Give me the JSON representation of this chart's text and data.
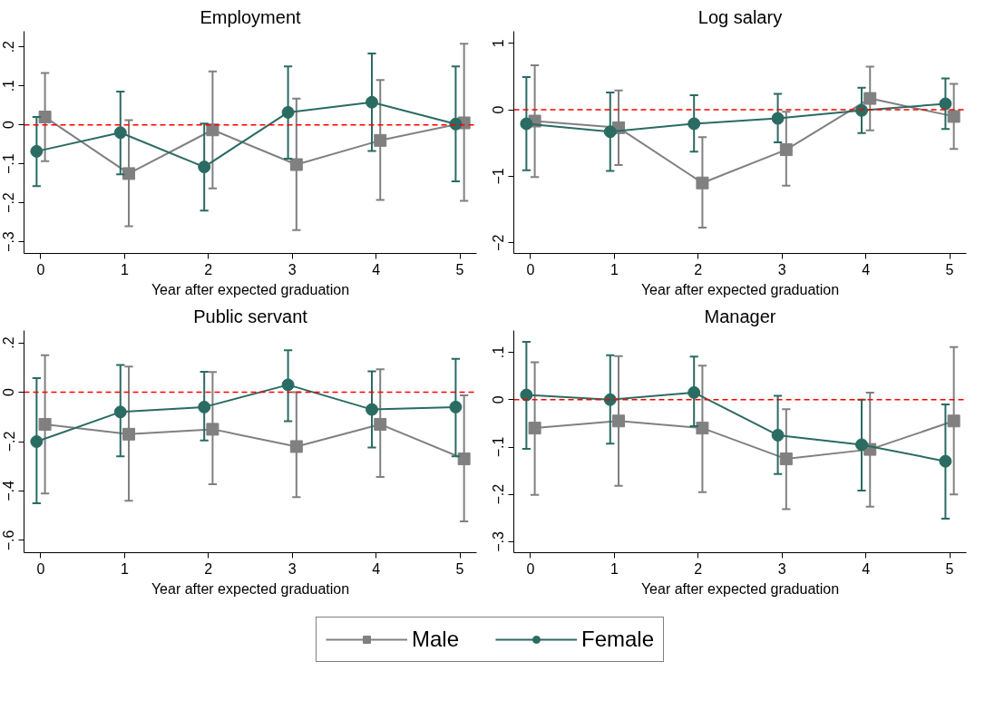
{
  "chart_data": [
    {
      "type": "line",
      "title": "Employment",
      "xlabel": "Year after expected graduation",
      "grid": false,
      "legend": "bottom",
      "xlim": [
        -0.2,
        5.2
      ],
      "xticks": [
        0,
        1,
        2,
        3,
        4,
        5
      ],
      "ylim": [
        -0.33,
        0.24
      ],
      "yticks": [
        {
          "value": -0.3,
          "label": "−.3"
        },
        {
          "value": -0.2,
          "label": "−.2"
        },
        {
          "value": -0.1,
          "label": "−.1"
        },
        0,
        {
          "value": 0.1,
          "label": ".1"
        },
        {
          "value": 0.2,
          "label": ".2"
        }
      ],
      "ref_lines": [
        {
          "axis": "y",
          "value": 0,
          "color": "#ff0000",
          "line_style": "dashed"
        }
      ],
      "series": [
        {
          "name": "Male",
          "color": "#808080",
          "marker": "square",
          "x": [
            0.05,
            1.05,
            2.05,
            3.05,
            4.05,
            5.05
          ],
          "values": [
            0.02,
            -0.125,
            -0.013,
            -0.102,
            -0.04,
            0.005
          ],
          "errors": [
            [
              -0.093,
              0.133
            ],
            [
              -0.26,
              0.012
            ],
            [
              -0.163,
              0.137
            ],
            [
              -0.27,
              0.067
            ],
            [
              -0.193,
              0.115
            ],
            [
              -0.195,
              0.208
            ]
          ]
        },
        {
          "name": "Female",
          "color": "#2a6b62",
          "marker": "circle",
          "x": [
            -0.05,
            0.95,
            1.95,
            2.95,
            3.95,
            4.95
          ],
          "values": [
            -0.068,
            -0.02,
            -0.108,
            0.032,
            0.058,
            0.002
          ],
          "errors": [
            [
              -0.157,
              0.02
            ],
            [
              -0.127,
              0.085
            ],
            [
              -0.22,
              0.003
            ],
            [
              -0.087,
              0.15
            ],
            [
              -0.067,
              0.183
            ],
            [
              -0.145,
              0.15
            ]
          ]
        }
      ]
    },
    {
      "type": "line",
      "title": "Log salary",
      "xlabel": "Year after expected graduation",
      "grid": false,
      "xlim": [
        -0.2,
        5.2
      ],
      "xticks": [
        0,
        1,
        2,
        3,
        4,
        5
      ],
      "ylim": [
        -2.16,
        1.18
      ],
      "yticks": [
        {
          "value": -2,
          "label": "−2"
        },
        {
          "value": -1,
          "label": "−1"
        },
        0,
        1
      ],
      "ref_lines": [
        {
          "axis": "y",
          "value": 0,
          "color": "#ff0000",
          "line_style": "dashed"
        }
      ],
      "series": [
        {
          "color": "#808080",
          "marker": "square",
          "x": [
            0.05,
            1.05,
            2.05,
            3.05,
            4.05,
            5.05
          ],
          "values": [
            -0.17,
            -0.27,
            -1.1,
            -0.6,
            0.17,
            -0.1
          ],
          "errors": [
            [
              -1.01,
              0.67
            ],
            [
              -0.83,
              0.29
            ],
            [
              -1.77,
              -0.41
            ],
            [
              -1.14,
              -0.03
            ],
            [
              -0.31,
              0.65
            ],
            [
              -0.59,
              0.39
            ]
          ]
        },
        {
          "color": "#2a6b62",
          "marker": "circle",
          "x": [
            -0.05,
            0.95,
            1.95,
            2.95,
            3.95,
            4.95
          ],
          "values": [
            -0.21,
            -0.33,
            -0.21,
            -0.13,
            -0.01,
            0.09
          ],
          "errors": [
            [
              -0.91,
              0.49
            ],
            [
              -0.92,
              0.26
            ],
            [
              -0.63,
              0.22
            ],
            [
              -0.49,
              0.24
            ],
            [
              -0.35,
              0.33
            ],
            [
              -0.29,
              0.47
            ]
          ]
        }
      ]
    },
    {
      "type": "line",
      "title": "Public servant",
      "xlabel": "Year after expected graduation",
      "grid": false,
      "xlim": [
        -0.2,
        5.2
      ],
      "xticks": [
        0,
        1,
        2,
        3,
        4,
        5
      ],
      "ylim": [
        -0.65,
        0.25
      ],
      "yticks": [
        {
          "value": -0.6,
          "label": "−.6"
        },
        {
          "value": -0.4,
          "label": "−.4"
        },
        {
          "value": -0.2,
          "label": "−.2"
        },
        0,
        {
          "value": 0.2,
          "label": ".2"
        }
      ],
      "ref_lines": [
        {
          "axis": "y",
          "value": 0,
          "color": "#ff0000",
          "line_style": "dashed"
        }
      ],
      "series": [
        {
          "color": "#808080",
          "marker": "square",
          "x": [
            0.05,
            1.05,
            2.05,
            3.05,
            4.05,
            5.05
          ],
          "values": [
            -0.13,
            -0.17,
            -0.15,
            -0.22,
            -0.13,
            -0.27
          ],
          "errors": [
            [
              -0.41,
              0.15
            ],
            [
              -0.44,
              0.104
            ],
            [
              -0.373,
              0.082
            ],
            [
              -0.425,
              0.0
            ],
            [
              -0.343,
              0.093
            ],
            [
              -0.523,
              -0.013
            ]
          ]
        },
        {
          "color": "#2a6b62",
          "marker": "circle",
          "x": [
            -0.05,
            0.95,
            1.95,
            2.95,
            3.95,
            4.95
          ],
          "values": [
            -0.2,
            -0.08,
            -0.06,
            0.03,
            -0.07,
            -0.06
          ],
          "errors": [
            [
              -0.45,
              0.057
            ],
            [
              -0.26,
              0.11
            ],
            [
              -0.195,
              0.083
            ],
            [
              -0.117,
              0.17
            ],
            [
              -0.224,
              0.085
            ],
            [
              -0.26,
              0.135
            ]
          ]
        }
      ]
    },
    {
      "type": "line",
      "title": "Manager",
      "xlabel": "Year after expected graduation",
      "grid": false,
      "xlim": [
        -0.2,
        5.2
      ],
      "xticks": [
        0,
        1,
        2,
        3,
        4,
        5
      ],
      "ylim": [
        -0.323,
        0.146
      ],
      "yticks": [
        {
          "value": -0.3,
          "label": "−.3"
        },
        {
          "value": -0.2,
          "label": "−.2"
        },
        {
          "value": -0.1,
          "label": "−.1"
        },
        0,
        {
          "value": 0.1,
          "label": ".1"
        }
      ],
      "ref_lines": [
        {
          "axis": "y",
          "value": 0,
          "color": "#ff0000",
          "line_style": "dashed"
        }
      ],
      "series": [
        {
          "color": "#808080",
          "marker": "square",
          "x": [
            0.05,
            1.05,
            2.05,
            3.05,
            4.05,
            5.05
          ],
          "values": [
            -0.06,
            -0.045,
            -0.06,
            -0.125,
            -0.105,
            -0.045
          ],
          "errors": [
            [
              -0.201,
              0.079
            ],
            [
              -0.182,
              0.092
            ],
            [
              -0.195,
              0.072
            ],
            [
              -0.231,
              -0.02
            ],
            [
              -0.226,
              0.015
            ],
            [
              -0.2,
              0.111
            ]
          ]
        },
        {
          "color": "#2a6b62",
          "marker": "circle",
          "x": [
            -0.05,
            0.95,
            1.95,
            2.95,
            3.95,
            4.95
          ],
          "values": [
            0.01,
            0.0,
            0.015,
            -0.075,
            -0.095,
            -0.13
          ],
          "errors": [
            [
              -0.104,
              0.122
            ],
            [
              -0.093,
              0.094
            ],
            [
              -0.056,
              0.091
            ],
            [
              -0.157,
              0.008
            ],
            [
              -0.192,
              0.0
            ],
            [
              -0.251,
              -0.01
            ]
          ]
        }
      ]
    }
  ]
}
